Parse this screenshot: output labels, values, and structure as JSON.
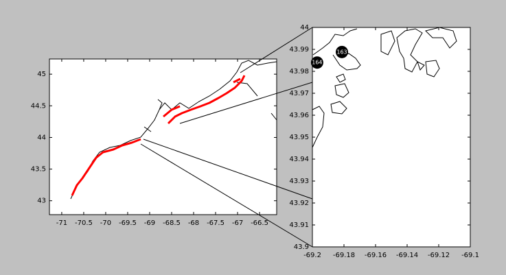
{
  "chart_data": [
    {
      "type": "map",
      "xlim": [
        -71.28,
        -66.11
      ],
      "ylim": [
        42.78,
        45.24
      ],
      "xticks": [
        -71,
        -70.5,
        -70,
        -69.5,
        -69,
        -68.5,
        -68,
        -67.5,
        -67,
        -66.5
      ],
      "yticks": [
        43,
        43.5,
        44,
        44.5,
        45
      ]
    },
    {
      "type": "map",
      "xlim": [
        -69.2,
        -69.1
      ],
      "ylim": [
        43.9,
        44
      ],
      "xticks": [
        -69.2,
        -69.18,
        -69.16,
        -69.14,
        -69.12,
        -69.1
      ],
      "yticks": [
        43.9,
        43.91,
        43.92,
        43.93,
        43.94,
        43.95,
        43.96,
        43.97,
        43.98,
        43.99,
        44
      ],
      "annotations": [
        {
          "text": "163",
          "x": -69.1813,
          "y": 43.9888
        },
        {
          "text": "164",
          "x": -69.197,
          "y": 43.984
        }
      ]
    }
  ]
}
